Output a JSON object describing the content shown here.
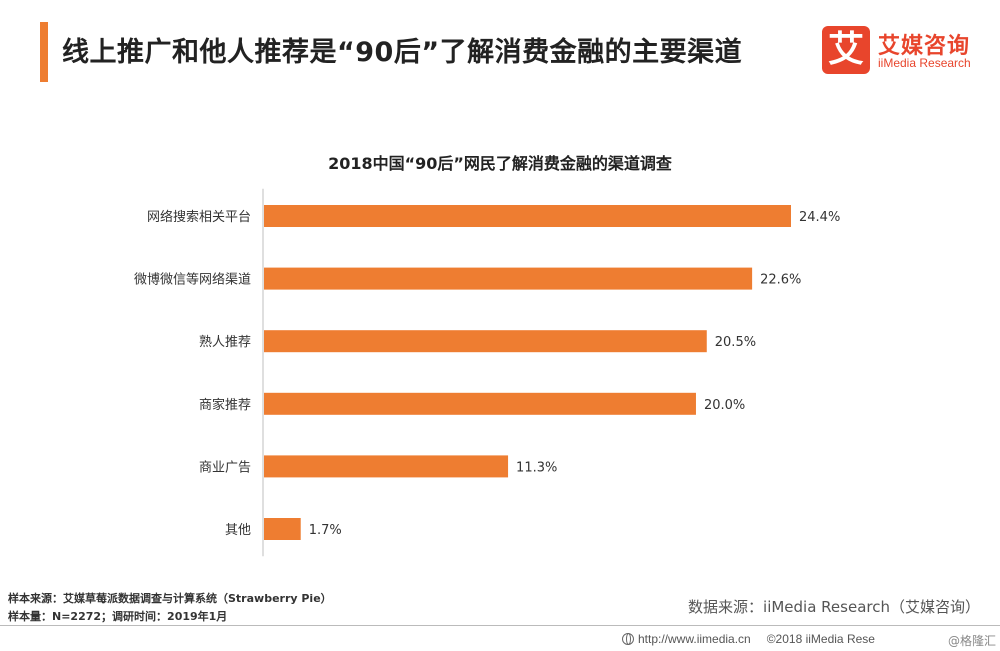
{
  "header": {
    "headline": "线上推广和他人推荐是“90后”了解消费金融的主要渠道",
    "logo_badge": "艾",
    "logo_cn": "艾媒咨询",
    "logo_en": "iiMedia Research"
  },
  "chart_data": {
    "type": "bar",
    "orientation": "horizontal",
    "title": "2018中国“90后”网民了解消费金融的渠道调查",
    "categories": [
      "网络搜索相关平台",
      "微博微信等网络渠道",
      "熟人推荐",
      "商家推荐",
      "商业广告",
      "其他"
    ],
    "values": [
      24.4,
      22.6,
      20.5,
      20.0,
      11.3,
      1.7
    ],
    "value_labels": [
      "24.4%",
      "22.6%",
      "20.5%",
      "20.0%",
      "11.3%",
      "1.7%"
    ],
    "unit": "%",
    "xlim": [
      0,
      26
    ],
    "grid": false,
    "bar_color": "#ee7d31"
  },
  "footer": {
    "sample_source": "样本来源：艾媒草莓派数据调查与计算系统（Strawberry Pie）",
    "sample_size": "样本量：N=2272；调研时间：2019年1月",
    "data_source": "数据来源：iiMedia Research（艾媒咨询）",
    "url": "http://www.iimedia.cn",
    "copyright": "©2018  iiMedia Rese",
    "watermark": "@格隆汇",
    "icon": "globe-icon"
  },
  "colors": {
    "accent": "#ee7d31",
    "brand": "#e8452c"
  }
}
